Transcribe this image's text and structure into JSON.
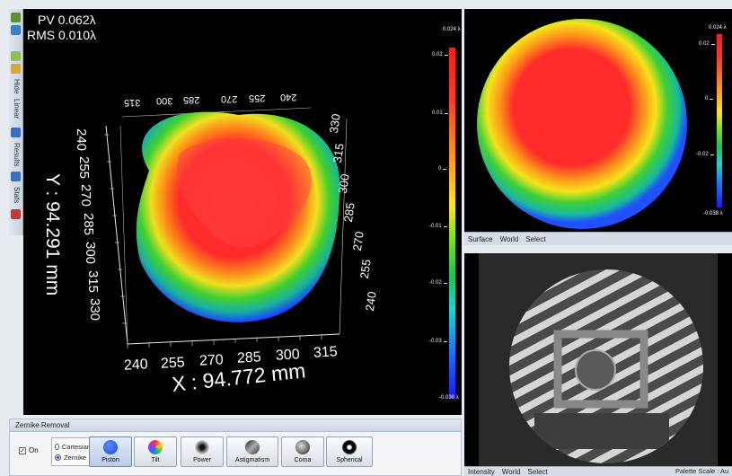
{
  "toolbar_left": {
    "items": [
      "Hide",
      "Linear",
      "Results",
      "Stats"
    ]
  },
  "main_view": {
    "pv": "PV 0.062λ",
    "rms": "RMS 0.010λ",
    "y_axis_title": "Y : 94.291 mm",
    "x_axis_title": "X : 94.772 mm",
    "x_ticks": [
      "240",
      "255",
      "270",
      "285",
      "300",
      "315"
    ],
    "y_ticks": [
      "240",
      "255",
      "270",
      "285",
      "300",
      "315",
      "330"
    ],
    "right_ticks": [
      "330",
      "315",
      "300",
      "285",
      "270",
      "255",
      "240"
    ],
    "top_ticks": [
      "315",
      "300",
      "285",
      "270",
      "255",
      "240"
    ],
    "colorbar": {
      "top": "0.024 λ",
      "bottom": "-0.038 λ",
      "ticks": [
        "0.02",
        "0.01",
        "0",
        "-0.01",
        "-0.02",
        "-0.03"
      ]
    }
  },
  "surface_view": {
    "colorbar": {
      "top": "0.024 λ",
      "bottom": "-0.038 λ",
      "ticks": [
        "0.02",
        "0",
        "-0.02"
      ]
    },
    "tabs": [
      "Surface",
      "World",
      "Select"
    ]
  },
  "intensity_view": {
    "tabs": [
      "Intensity",
      "World",
      "Select"
    ],
    "palette_scale": "Palette Scale : Au"
  },
  "zernike": {
    "title": "Zernike Removal",
    "on_label": "On",
    "on_checked": true,
    "radio_options": [
      "Cartesian",
      "Zernike"
    ],
    "radio_selected": "Zernike",
    "buttons": [
      {
        "label": "Piston",
        "icon": "piston-icon",
        "active": true
      },
      {
        "label": "Tilt",
        "icon": "tilt-icon",
        "active": false
      },
      {
        "label": "Power",
        "icon": "power-icon",
        "active": false
      },
      {
        "label": "Astigmatism",
        "icon": "astigmatism-icon",
        "active": false
      },
      {
        "label": "Coma",
        "icon": "coma-icon",
        "active": false
      },
      {
        "label": "Spherical",
        "icon": "spherical-icon",
        "active": false
      }
    ]
  }
}
